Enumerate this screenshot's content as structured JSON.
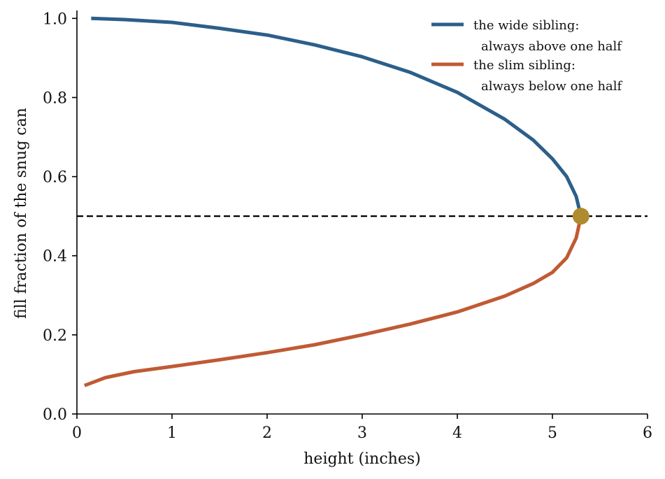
{
  "chart_data": {
    "type": "line",
    "title": "",
    "xlabel": "height (inches)",
    "ylabel": "fill fraction of the snug can",
    "xlim": [
      0,
      6
    ],
    "ylim": [
      0,
      1.02
    ],
    "xticks": [
      "0",
      "1",
      "2",
      "3",
      "4",
      "5",
      "6"
    ],
    "yticks": [
      "0.0",
      "0.2",
      "0.4",
      "0.6",
      "0.8",
      "1.0"
    ],
    "grid": false,
    "legend_position": "top-right",
    "reference_line": {
      "y": 0.5,
      "style": "dashed",
      "color": "#000000"
    },
    "marker_point": {
      "x": 5.3,
      "y": 0.5,
      "color": "#b08a2e"
    },
    "series": [
      {
        "name": "the wide sibling:",
        "name_line2": "always above one half",
        "color": "#2c5f8a",
        "x": [
          0.15,
          0.5,
          1.0,
          1.5,
          2.0,
          2.5,
          3.0,
          3.5,
          4.0,
          4.5,
          4.8,
          5.0,
          5.15,
          5.25,
          5.3
        ],
        "y": [
          1.0,
          0.997,
          0.99,
          0.975,
          0.958,
          0.933,
          0.903,
          0.864,
          0.813,
          0.745,
          0.692,
          0.645,
          0.6,
          0.55,
          0.5
        ]
      },
      {
        "name": "the slim sibling:",
        "name_line2": "always below one half",
        "color": "#c05a34",
        "x": [
          0.08,
          0.3,
          0.6,
          1.0,
          1.5,
          2.0,
          2.5,
          3.0,
          3.5,
          4.0,
          4.5,
          4.8,
          5.0,
          5.15,
          5.25,
          5.3
        ],
        "y": [
          0.072,
          0.092,
          0.107,
          0.12,
          0.137,
          0.155,
          0.175,
          0.2,
          0.227,
          0.258,
          0.298,
          0.33,
          0.358,
          0.395,
          0.445,
          0.5
        ]
      }
    ]
  }
}
